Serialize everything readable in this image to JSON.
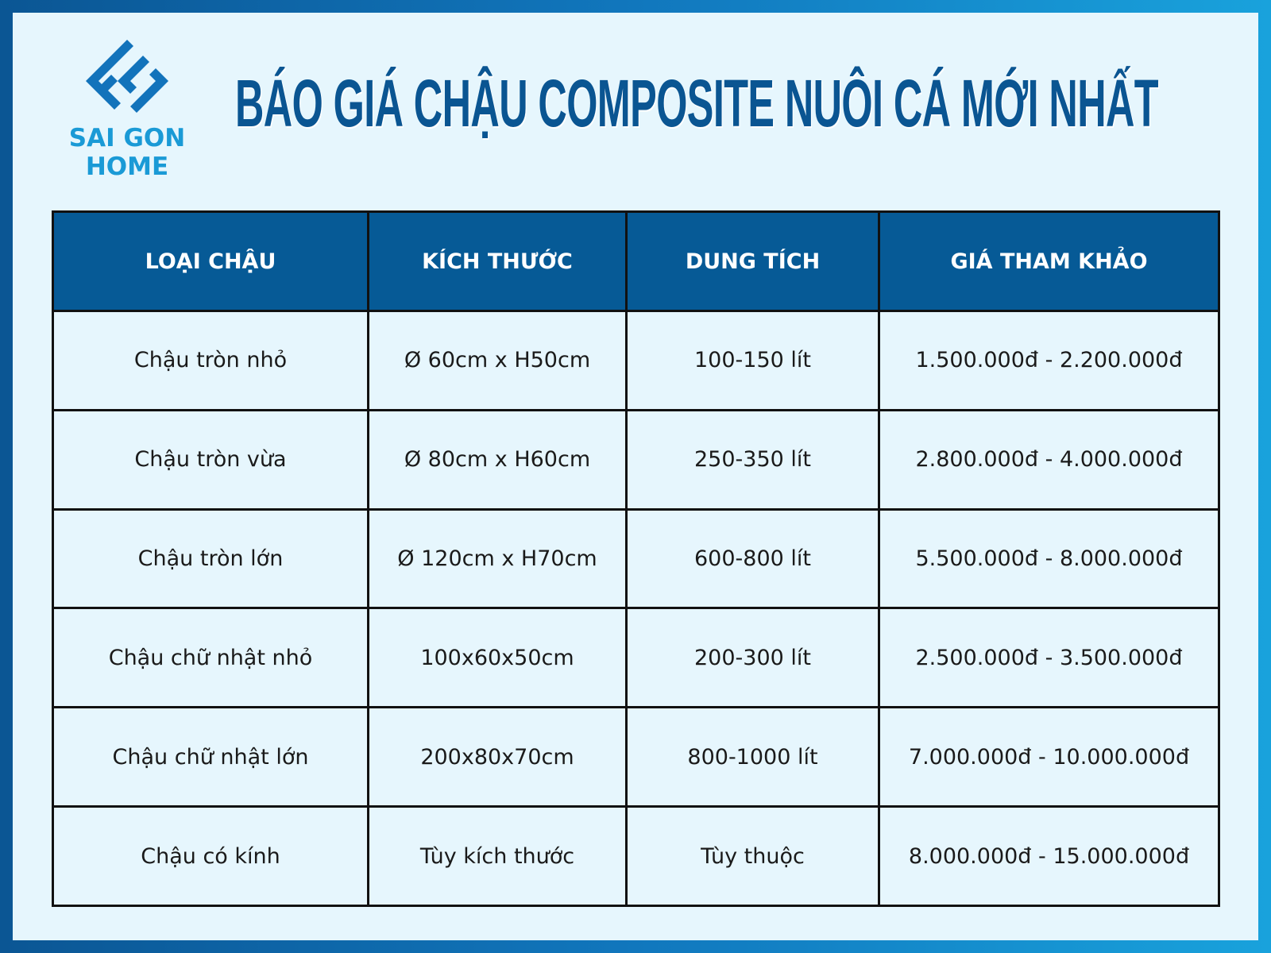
{
  "logo": {
    "line1": "SAI GON",
    "line2": "HOME"
  },
  "title": "BÁO GIÁ CHẬU COMPOSITE NUÔI CÁ MỚI NHẤT",
  "colors": {
    "header": "#065a96",
    "title": "#0a5592",
    "logo": "#1a9ad6",
    "background": "#e6f6fd"
  },
  "table": {
    "headers": [
      "LOẠI CHẬU",
      "KÍCH THƯỚC",
      "DUNG TÍCH",
      "GIÁ THAM KHẢO"
    ],
    "rows": [
      [
        "Chậu tròn nhỏ",
        "Ø 60cm x H50cm",
        "100-150 lít",
        "1.500.000đ - 2.200.000đ"
      ],
      [
        "Chậu tròn vừa",
        "Ø 80cm x H60cm",
        "250-350 lít",
        "2.800.000đ - 4.000.000đ"
      ],
      [
        "Chậu tròn lớn",
        "Ø 120cm x H70cm",
        "600-800 lít",
        "5.500.000đ - 8.000.000đ"
      ],
      [
        "Chậu chữ nhật nhỏ",
        "100x60x50cm",
        "200-300 lít",
        "2.500.000đ - 3.500.000đ"
      ],
      [
        "Chậu chữ nhật lớn",
        "200x80x70cm",
        "800-1000 lít",
        "7.000.000đ - 10.000.000đ"
      ],
      [
        "Chậu có kính",
        "Tùy kích thước",
        "Tùy thuộc",
        "8.000.000đ - 15.000.000đ"
      ]
    ]
  }
}
